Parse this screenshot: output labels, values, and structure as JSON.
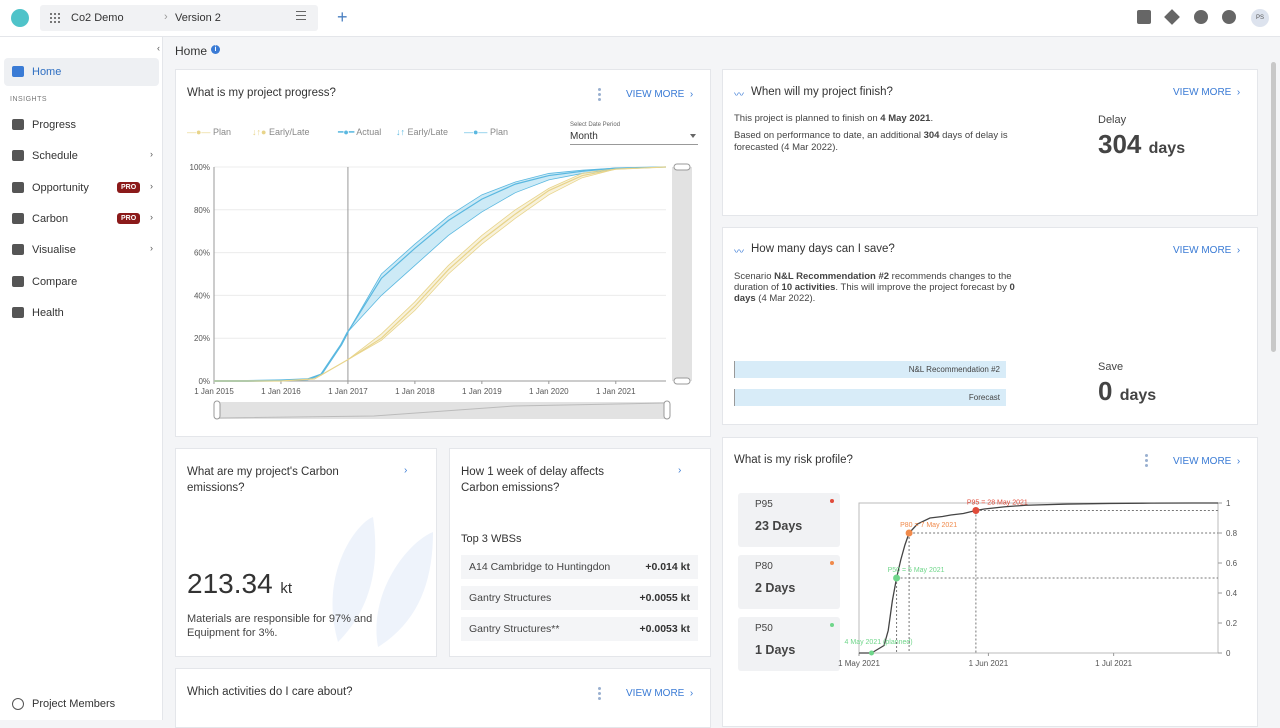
{
  "topbar": {
    "project_name": "Co2 Demo",
    "separator": "›",
    "version_name": "Version 2",
    "add_label": "+",
    "avatar_initials": "PS",
    "icons": [
      "box-icon",
      "layers-icon",
      "gear-icon",
      "help-chat-icon"
    ]
  },
  "sidebar": {
    "collapse_label": "‹",
    "section_label": "INSIGHTS",
    "items": [
      {
        "label": "Home",
        "icon": "home-icon",
        "active": true
      },
      {
        "label": "Progress",
        "icon": "progress-icon"
      },
      {
        "label": "Schedule",
        "icon": "calendar-icon",
        "chevron": "›"
      },
      {
        "label": "Opportunity",
        "icon": "telescope-icon",
        "badge": "PRO",
        "chevron": "›"
      },
      {
        "label": "Carbon",
        "icon": "leaf-icon",
        "badge": "PRO",
        "chevron": "›"
      },
      {
        "label": "Visualise",
        "icon": "eye-icon",
        "chevron": "›"
      },
      {
        "label": "Compare",
        "icon": "compare-icon"
      },
      {
        "label": "Health",
        "icon": "health-icon"
      }
    ],
    "members_label": "Project Members"
  },
  "page": {
    "breadcrumb": "Home",
    "info_label": "i"
  },
  "progress_card": {
    "title": "What is my project progress?",
    "view_more": "VIEW MORE",
    "chevron": "›",
    "legend": [
      {
        "label": "Plan",
        "prefix": "B",
        "color": "#e8d48a"
      },
      {
        "label": "Early/Late",
        "prefix": "B",
        "color": "#e8d48a"
      },
      {
        "label": "Actual",
        "color": "#5ab8e0"
      },
      {
        "label": "Early/Late",
        "color": "#5ab8e0"
      },
      {
        "label": "Plan",
        "color": "#5ab8e0"
      }
    ],
    "date_period_label": "Select Date Period",
    "date_period_value": "Month"
  },
  "finish_card": {
    "title": "When will my project finish?",
    "view_more": "VIEW MORE",
    "chevron": "›",
    "line1_pre": "This project is planned to finish on ",
    "line1_date": "4 May 2021",
    "line1_post": ".",
    "line2_pre": "Based on performance to date, an additional ",
    "line2_days": "304",
    "line2_mid": " days of delay is",
    "line3": "forecasted (4 Mar 2022).",
    "delay_label": "Delay",
    "delay_value": "304",
    "delay_unit": "days"
  },
  "save_card": {
    "title": "How many days can I save?",
    "view_more": "VIEW MORE",
    "chevron": "›",
    "line1_pre": "Scenario ",
    "line1_scenario": "N&L Recommendation #2",
    "line1_post": " recommends changes to the",
    "line2_pre": "duration of ",
    "line2_acts": "10 activities",
    "line2_post": ". This will improve the project forecast by ",
    "line2_num": "0",
    "line3_days": "days",
    "line3_post": " (4 Mar 2022).",
    "bar1_label": "N&L Recommendation #2",
    "bar2_label": "Forecast",
    "save_label": "Save",
    "save_value": "0",
    "save_unit": "days"
  },
  "carbon_card": {
    "title_line1": "What are my project's Carbon",
    "title_line2": "emissions?",
    "chevron": "›",
    "value": "213.34",
    "unit": "kt",
    "desc_line1": "Materials are responsible for 97% and",
    "desc_line2": "Equipment for 3%."
  },
  "delay_card": {
    "title_line1": "How 1 week of delay affects",
    "title_line2": "Carbon emissions?",
    "chevron": "›",
    "subtitle": "Top 3 WBSs",
    "rows": [
      {
        "name": "A14 Cambridge to Huntingdon",
        "value": "+0.014 kt"
      },
      {
        "name": "Gantry Structures",
        "value": "+0.0055 kt"
      },
      {
        "name": "Gantry Structures**",
        "value": "+0.0053 kt"
      }
    ]
  },
  "risk_card": {
    "title": "What is my risk profile?",
    "view_more": "VIEW MORE",
    "chevron": "›",
    "boxes": [
      {
        "label": "P95",
        "value": "23 Days",
        "color": "#e04b3a"
      },
      {
        "label": "P80",
        "value": "2 Days",
        "color": "#f08a4b"
      },
      {
        "label": "P50",
        "value": "1 Days",
        "color": "#6fd68a"
      }
    ]
  },
  "activities_card": {
    "title": "Which activities do I care about?",
    "view_more": "VIEW MORE",
    "chevron": "›"
  },
  "chart_data": [
    {
      "type": "line",
      "title": "",
      "x_ticks": [
        "1 Jan 2015",
        "1 Jan 2016",
        "1 Jan 2017",
        "1 Jan 2018",
        "1 Jan 2019",
        "1 Jan 2020",
        "1 Jan 2021"
      ],
      "y_ticks": [
        "0%",
        "20%",
        "40%",
        "60%",
        "80%",
        "100%"
      ],
      "ylim": [
        0,
        100
      ],
      "xlim": [
        2015.0,
        2021.75
      ],
      "series": [
        {
          "name": "Actual",
          "color": "#5ab8e0",
          "x": [
            2015.0,
            2015.5,
            2016.0,
            2016.4,
            2016.6,
            2016.75,
            2016.9,
            2017.0
          ],
          "y": [
            0,
            0,
            0.3,
            0.8,
            3,
            10,
            17,
            23
          ]
        },
        {
          "name": "Plan",
          "color": "#5ab8e0",
          "x": [
            2017.0,
            2017.5,
            2018.0,
            2018.5,
            2019.0,
            2019.5,
            2020.0,
            2020.5,
            2021.0,
            2021.75
          ],
          "y": [
            23,
            48,
            62,
            75,
            85,
            92,
            96,
            98,
            99.5,
            100
          ]
        },
        {
          "name": "Plan",
          "color": "#e8d48a",
          "x": [
            2015.0,
            2016.0,
            2016.5,
            2017.0,
            2017.5,
            2018.0,
            2018.5,
            2019.0,
            2019.5,
            2020.0,
            2020.5,
            2021.0,
            2021.75
          ],
          "y": [
            0,
            0,
            1,
            10,
            20,
            35,
            52,
            66,
            78,
            89,
            96,
            99,
            100
          ]
        }
      ],
      "bands": [
        {
          "name": "Early/Late",
          "color": "#5ab8e0",
          "x": [
            2017.0,
            2017.5,
            2018.0,
            2018.5,
            2019.0,
            2019.5,
            2020.0,
            2020.5,
            2021.0,
            2021.75
          ],
          "low": [
            23,
            40,
            54,
            68,
            79,
            88,
            94,
            97,
            99,
            100
          ],
          "high": [
            23,
            50,
            64,
            77,
            87,
            93,
            97,
            98.5,
            99.5,
            100
          ]
        },
        {
          "name": "Early/Late",
          "color": "#e8d48a",
          "x": [
            2017.0,
            2017.5,
            2018.0,
            2018.5,
            2019.0,
            2019.5,
            2020.0,
            2020.5,
            2021.0,
            2021.75
          ],
          "low": [
            10,
            19,
            33,
            50,
            64,
            76,
            87,
            95,
            99,
            100
          ],
          "high": [
            10,
            22,
            37,
            54,
            68,
            80,
            90,
            97,
            99.5,
            100
          ]
        }
      ],
      "marker_x": 2017.0
    },
    {
      "type": "line",
      "title": "",
      "x_ticks": [
        "1 May 2021",
        "1 Jun 2021",
        "1 Jul 2021"
      ],
      "y_ticks": [
        "0",
        "0.2",
        "0.4",
        "0.6",
        "0.8",
        "1"
      ],
      "ylim": [
        0,
        1
      ],
      "xlim": [
        0,
        86
      ],
      "series": [
        {
          "name": "",
          "color": "#444444",
          "x": [
            0,
            3,
            6,
            7,
            8,
            9,
            10,
            11,
            12,
            14,
            17,
            20,
            22,
            25,
            28,
            30,
            35,
            40,
            50,
            60,
            70,
            80,
            86
          ],
          "y": [
            0,
            0,
            0.05,
            0.15,
            0.35,
            0.5,
            0.62,
            0.72,
            0.8,
            0.86,
            0.9,
            0.91,
            0.92,
            0.93,
            0.95,
            0.96,
            0.975,
            0.985,
            0.993,
            0.997,
            0.999,
            1,
            1
          ]
        }
      ],
      "annotations": [
        {
          "label": "4 May 2021 (planned)",
          "x": 3,
          "y": 0,
          "color": "#6fd68a"
        },
        {
          "label": "P50 = 5 May 2021",
          "x": 9,
          "y": 0.5,
          "color": "#6fd68a"
        },
        {
          "label": "P80 = 7 May 2021",
          "x": 12,
          "y": 0.8,
          "color": "#f08a4b"
        },
        {
          "label": "P95 = 28 May 2021",
          "x": 28,
          "y": 0.95,
          "color": "#e04b3a"
        }
      ]
    }
  ]
}
